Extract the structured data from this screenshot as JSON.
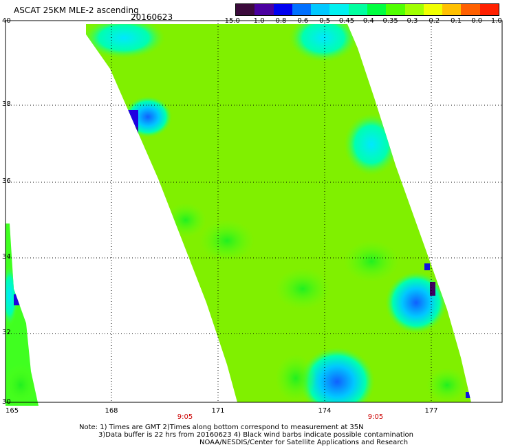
{
  "header": {
    "title": "ASCAT 25KM MLE-2 ascending",
    "date": "20160623"
  },
  "colorbar": {
    "colors": [
      "#3b0a3b",
      "#4a00a0",
      "#0000f0",
      "#0070ff",
      "#00c8ff",
      "#00f0f0",
      "#00ffa0",
      "#00ff40",
      "#50ff00",
      "#a0ff00",
      "#f0ff00",
      "#ffc000",
      "#ff6000",
      "#ff2000"
    ],
    "labels": [
      "-15.0",
      "-1.0",
      "-0.8",
      "-0.6",
      "-0.5",
      "-0.45",
      "-0.4",
      "-0.35",
      "-0.3",
      "-0.2",
      "-0.1",
      "0.0",
      "1.0"
    ]
  },
  "axes": {
    "lat_labels": [
      "40",
      "38",
      "36",
      "34",
      "32",
      "30"
    ],
    "lon_labels": [
      "165",
      "168",
      "171",
      "174",
      "177"
    ],
    "time_labels": [
      "9:05",
      "9:05"
    ]
  },
  "notes": {
    "line1": "Note: 1) Times are GMT 2)Times along bottom correspond to measurement at 35N",
    "line2": "3)Data buffer is 22 hrs from 20160623 4) Black wind barbs indicate possible contamination",
    "line3": "NOAA/NESDIS/Center for Satellite Applications and Research"
  }
}
